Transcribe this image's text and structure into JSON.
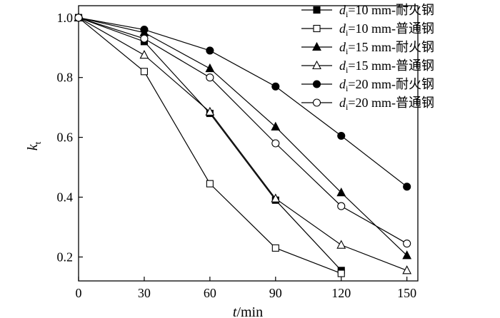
{
  "chart_data": {
    "type": "line",
    "xlabel": {
      "var": "t",
      "unit": "/min"
    },
    "ylabel": {
      "var": "k",
      "sub": "t"
    },
    "x": [
      0,
      30,
      60,
      90,
      120,
      150
    ],
    "xlim": [
      0,
      155
    ],
    "ylim": [
      0.12,
      1.04
    ],
    "x_ticks": [
      0,
      30,
      60,
      90,
      120,
      150
    ],
    "y_ticks": [
      0.2,
      0.4,
      0.6,
      0.8,
      1.0
    ],
    "legend_position": "top-right",
    "series": [
      {
        "name": {
          "var": "d",
          "sub": "i",
          "text": "=10 mm-耐火钢"
        },
        "marker": "square",
        "filled": true,
        "values": [
          1.0,
          0.92,
          0.68,
          0.39,
          0.155,
          null
        ]
      },
      {
        "name": {
          "var": "d",
          "sub": "i",
          "text": "=10 mm-普通钢"
        },
        "marker": "square",
        "filled": false,
        "values": [
          1.0,
          0.82,
          0.445,
          0.23,
          0.145,
          null
        ]
      },
      {
        "name": {
          "var": "d",
          "sub": "i",
          "text": "=15 mm-耐火钢"
        },
        "marker": "triangle",
        "filled": true,
        "values": [
          1.0,
          0.95,
          0.83,
          0.635,
          0.415,
          0.205
        ]
      },
      {
        "name": {
          "var": "d",
          "sub": "i",
          "text": "=15 mm-普通钢"
        },
        "marker": "triangle",
        "filled": false,
        "values": [
          1.0,
          0.875,
          0.685,
          0.395,
          0.24,
          0.155
        ]
      },
      {
        "name": {
          "var": "d",
          "sub": "i",
          "text": "=20 mm-耐火钢"
        },
        "marker": "circle",
        "filled": true,
        "values": [
          1.0,
          0.96,
          0.89,
          0.77,
          0.605,
          0.435
        ]
      },
      {
        "name": {
          "var": "d",
          "sub": "i",
          "text": "=20 mm-普通钢"
        },
        "marker": "circle",
        "filled": false,
        "values": [
          1.0,
          0.93,
          0.8,
          0.58,
          0.37,
          0.245
        ]
      }
    ]
  }
}
